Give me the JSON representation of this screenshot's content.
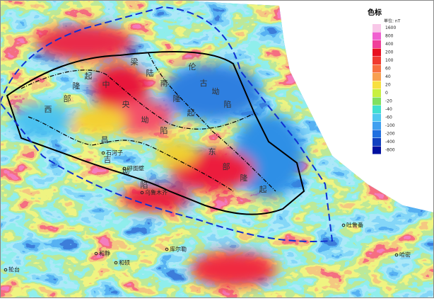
{
  "legend": {
    "title": "色标",
    "unit": "单位: nT",
    "labels": [
      1600,
      800,
      400,
      200,
      100,
      60,
      40,
      20,
      0,
      -20,
      -40,
      -60,
      -100,
      -200,
      -400,
      -800
    ]
  },
  "map_labels": [
    "中",
    "央",
    "坳",
    "陷",
    "西",
    "部",
    "隆",
    "起",
    "伦",
    "古",
    "坳",
    "陷",
    "南",
    "隆",
    "起",
    "昌",
    "吉",
    "坳",
    "陷",
    "东",
    "部",
    "隆",
    "起",
    "陆",
    "梁"
  ],
  "towns": [
    "石河子",
    "呼图壁",
    "乌鲁木齐",
    "和静",
    "和硕",
    "轮台",
    "库尔勒",
    "吐鲁番",
    "哈密"
  ]
}
